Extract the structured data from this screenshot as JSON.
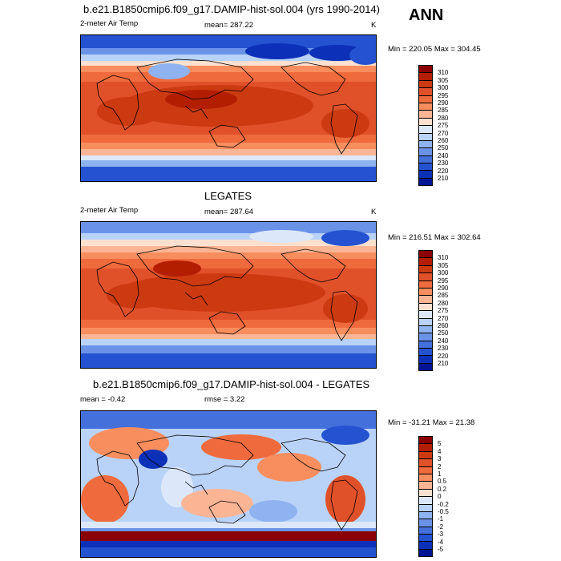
{
  "header": {
    "season": "ANN"
  },
  "panels": [
    {
      "title": "b.e21.B1850cmip6.f09_g17.DAMIP-hist-sol.004 (yrs 1990-2014)",
      "left_label": "2-meter Air Temp",
      "center_label": "mean= 287.22",
      "right_label": "K",
      "minmax": "Min = 220.05 Max = 304.45",
      "colorbar_levels": [
        "310",
        "305",
        "300",
        "295",
        "290",
        "285",
        "280",
        "275",
        "270",
        "260",
        "250",
        "240",
        "230",
        "220",
        "210"
      ],
      "colorbar_colors": [
        "#8b0000",
        "#b31e00",
        "#cc3a12",
        "#e0512a",
        "#ef6a3c",
        "#f88d5e",
        "#fbb595",
        "#fde0cf",
        "#dce8fa",
        "#b9d2f7",
        "#8fb3f0",
        "#6a93e8",
        "#4470dc",
        "#2452d0",
        "#0c30b8",
        "#001494"
      ]
    },
    {
      "title": "LEGATES",
      "left_label": "2-meter Air Temp",
      "center_label": "mean= 287.64",
      "right_label": "K",
      "minmax": "Min = 216.51 Max = 302.64",
      "colorbar_levels": [
        "310",
        "305",
        "300",
        "295",
        "290",
        "285",
        "280",
        "275",
        "270",
        "260",
        "250",
        "240",
        "230",
        "220",
        "210"
      ],
      "colorbar_colors": [
        "#8b0000",
        "#b31e00",
        "#cc3a12",
        "#e0512a",
        "#ef6a3c",
        "#f88d5e",
        "#fbb595",
        "#fde0cf",
        "#dce8fa",
        "#b9d2f7",
        "#8fb3f0",
        "#6a93e8",
        "#4470dc",
        "#2452d0",
        "#0c30b8",
        "#001494"
      ]
    },
    {
      "title": "b.e21.B1850cmip6.f09_g17.DAMIP-hist-sol.004 - LEGATES",
      "left_label": "mean =  -0.42",
      "center_label": "rmse =   3.22",
      "right_label": "",
      "minmax": "Min = -31.21 Max =  21.38",
      "colorbar_levels": [
        "5",
        "4",
        "3",
        "2",
        "1",
        "0.5",
        "0.2",
        "0",
        "-0.2",
        "-0.5",
        "-1",
        "-2",
        "-3",
        "-4",
        "-5"
      ],
      "colorbar_colors": [
        "#8b0000",
        "#b31e00",
        "#cc3a12",
        "#e0512a",
        "#ef6a3c",
        "#f88d5e",
        "#fbb595",
        "#fde0cf",
        "#dce8fa",
        "#b9d2f7",
        "#8fb3f0",
        "#6a93e8",
        "#4470dc",
        "#2452d0",
        "#0c30b8",
        "#001494"
      ]
    }
  ]
}
